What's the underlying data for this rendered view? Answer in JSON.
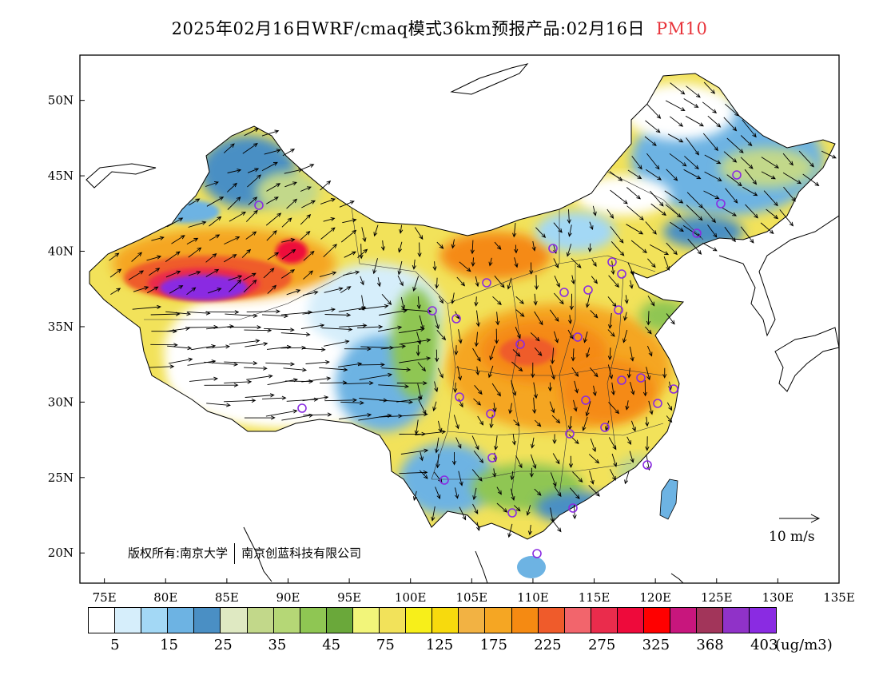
{
  "title": {
    "main": "2025年02月16日WRF/cmaq模式36km预报产品:02月16日",
    "pollutant": "PM10",
    "pollutant_color": "#e8333a"
  },
  "copyright": {
    "owner": "版权所有:南京大学",
    "company": "南京创蓝科技有限公司"
  },
  "wind_reference": {
    "label": "10 m/s"
  },
  "map": {
    "lon_range": [
      73,
      135
    ],
    "lat_range": [
      18,
      53
    ],
    "lon_ticks": [
      "75E",
      "80E",
      "85E",
      "90E",
      "95E",
      "100E",
      "105E",
      "110E",
      "115E",
      "120E",
      "125E",
      "130E",
      "135E"
    ],
    "lat_ticks": [
      "20N",
      "25N",
      "30N",
      "35N",
      "40N",
      "45N",
      "50N"
    ],
    "field_summary": {
      "highest": "Tarim Basin (southern Xinjiang), >403 ug/m3",
      "high": "Central/eastern China (Henan, Hubei, Anhui, Jiangxi), 175-275 ug/m3",
      "moderate": "North China plain, Sichuan basin, 75-175 ug/m3",
      "low": "Tibetan Plateau, Northeast, South China coast, 5-45 ug/m3"
    }
  },
  "colorbar": {
    "colors": [
      "#ffffff",
      "#d6eefb",
      "#a3d8f5",
      "#6db3e3",
      "#4a8fc4",
      "#dfe9c2",
      "#c2d88a",
      "#b5d776",
      "#8fc653",
      "#6aa83a",
      "#f2f57a",
      "#f2e25a",
      "#f7ef1a",
      "#f7da0d",
      "#f2b243",
      "#f5a623",
      "#f58a12",
      "#ef5b2b",
      "#f2656c",
      "#ea2c4c",
      "#ee0a3b",
      "#ff0000",
      "#c8167d",
      "#a2355a",
      "#9032c8",
      "#8a2be2"
    ],
    "labels": [
      "5",
      "15",
      "25",
      "35",
      "45",
      "75",
      "125",
      "175",
      "225",
      "275",
      "325",
      "368",
      "403"
    ],
    "unit": "(ug/m3)"
  }
}
